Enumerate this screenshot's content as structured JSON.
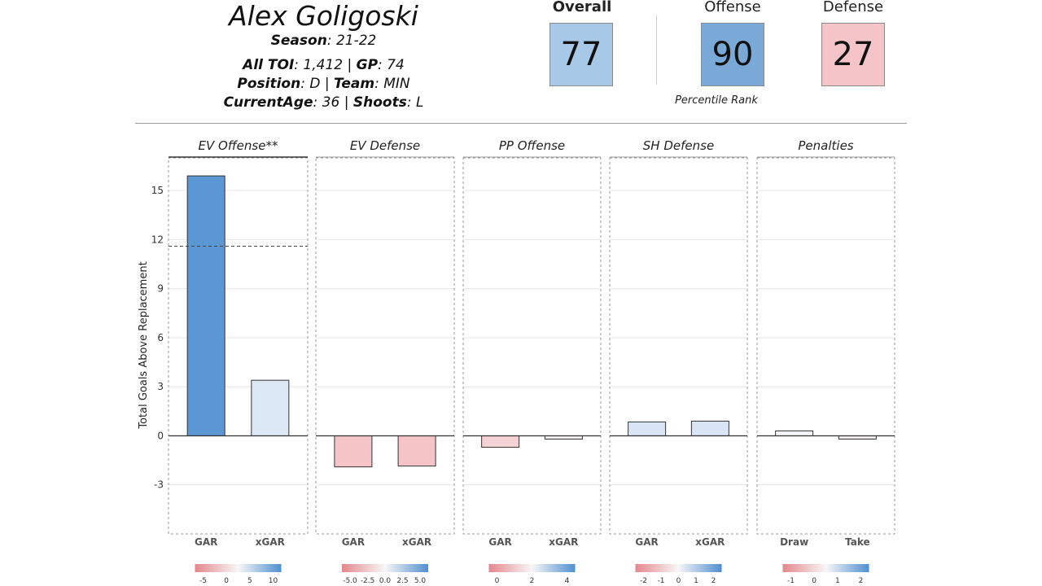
{
  "player": {
    "name": "Alex Goligoski",
    "season_label": "Season",
    "season_value": ": 21-22",
    "toi_label": "All TOI",
    "toi_value": ": 1,412 | ",
    "gp_label": "GP",
    "gp_value": ": 74",
    "position_label": "Position",
    "position_value": ": D | ",
    "team_label": "Team",
    "team_value": ": MIN",
    "age_label": "CurrentAge",
    "age_value": ": 36 | ",
    "shoots_label": "Shoots",
    "shoots_value": ": L"
  },
  "ranks": {
    "overall_label": "Overall",
    "overall_value": "77",
    "overall_color": "#a8c8e8",
    "offense_label": "Offense",
    "offense_value": "90",
    "offense_color": "#7aa9d8",
    "defense_label": "Defense",
    "defense_value": "27",
    "defense_color": "#f4c4c8",
    "footnote": "Percentile Rank"
  },
  "chart_data": {
    "type": "bar",
    "ylabel": "Total Goals Above Replacement",
    "ylim": [
      -6,
      17
    ],
    "yticks": [
      -3,
      0,
      3,
      6,
      9,
      12,
      15
    ],
    "grid": true,
    "panels": [
      {
        "title": "EV Offense**",
        "categories": [
          "GAR",
          "xGAR"
        ],
        "values": [
          15.9,
          3.4
        ],
        "colors": [
          "#5b97d3",
          "#dde8f6"
        ],
        "reference_line": 11.6,
        "legend_ticks": [
          "-5",
          "0",
          "5",
          "10"
        ]
      },
      {
        "title": "EV Defense",
        "categories": [
          "GAR",
          "xGAR"
        ],
        "values": [
          -1.9,
          -1.85
        ],
        "colors": [
          "#f4c4c6",
          "#f4c4c6"
        ],
        "legend_ticks": [
          "-5.0",
          "-2.5",
          "0.0",
          "2.5",
          "5.0"
        ]
      },
      {
        "title": "PP Offense",
        "categories": [
          "GAR",
          "xGAR"
        ],
        "values": [
          -0.7,
          -0.2
        ],
        "colors": [
          "#f5d2d4",
          "#f7f3f4"
        ],
        "legend_ticks": [
          "0",
          "2",
          "4"
        ]
      },
      {
        "title": "SH Defense",
        "categories": [
          "GAR",
          "xGAR"
        ],
        "values": [
          0.85,
          0.9
        ],
        "colors": [
          "#d9e5f5",
          "#d9e5f5"
        ],
        "legend_ticks": [
          "-2",
          "-1",
          "0",
          "1",
          "2"
        ]
      },
      {
        "title": "Penalties",
        "categories": [
          "Draw",
          "Take"
        ],
        "values": [
          0.3,
          -0.2
        ],
        "colors": [
          "#f4f6fa",
          "#f7efef"
        ],
        "legend_ticks": [
          "-1",
          "0",
          "1",
          "2"
        ]
      }
    ]
  }
}
